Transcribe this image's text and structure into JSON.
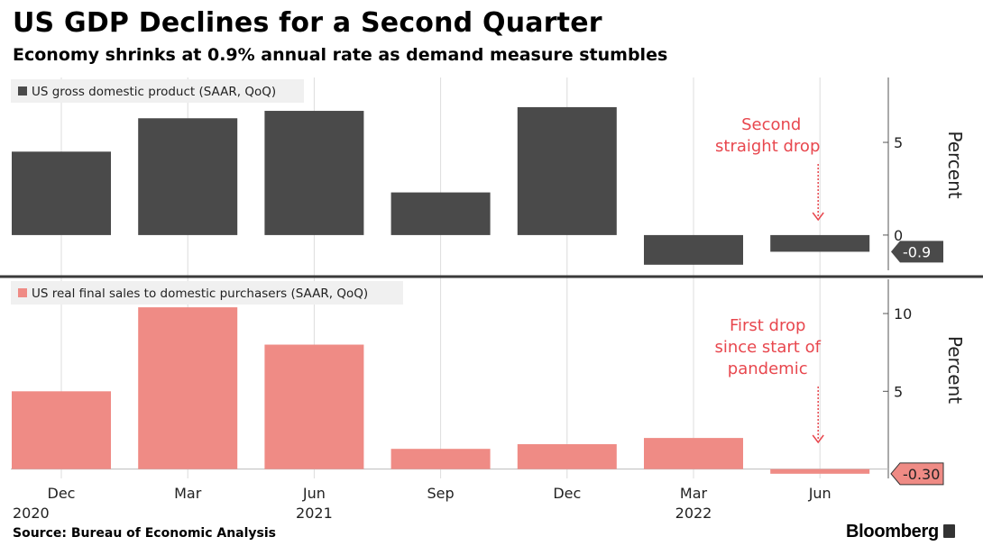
{
  "title": "US GDP Declines for a Second Quarter",
  "subtitle": "Economy shrinks at 0.9% annual rate as demand measure stumbles",
  "source": "Source: Bureau of Economic Analysis",
  "brand": "Bloomberg",
  "colors": {
    "gdp": "#4a4a4a",
    "sales": "#ef8b85",
    "annotation": "#e8474e",
    "grid": "#dcdcdc"
  },
  "chart_data": [
    {
      "type": "bar",
      "legend": "US gross domestic product (SAAR, QoQ)",
      "ylabel": "Percent",
      "categories": [
        "Dec 2020",
        "Mar 2021",
        "Jun 2021",
        "Sep 2021",
        "Dec 2021",
        "Mar 2022",
        "Jun 2022"
      ],
      "values": [
        4.5,
        6.3,
        6.7,
        2.3,
        6.9,
        -1.6,
        -0.9
      ],
      "ylim": [
        -1.9,
        8.5
      ],
      "yticks": [
        0,
        5
      ],
      "last_value_label": "-0.9",
      "annotation": [
        "Second",
        "straight drop"
      ]
    },
    {
      "type": "bar",
      "legend": "US real final sales to domestic purchasers (SAAR, QoQ)",
      "ylabel": "Percent",
      "categories": [
        "Dec 2020",
        "Mar 2021",
        "Jun 2021",
        "Sep 2021",
        "Dec 2021",
        "Mar 2022",
        "Jun 2022"
      ],
      "values": [
        5.0,
        10.4,
        8.0,
        1.3,
        1.6,
        2.0,
        -0.3
      ],
      "ylim": [
        -0.6,
        12.2
      ],
      "yticks": [
        5,
        10
      ],
      "last_value_label": "-0.30",
      "annotation": [
        "First drop",
        "since start of",
        "pandemic"
      ]
    }
  ],
  "x_axis": {
    "labels": [
      "Dec",
      "Mar",
      "Jun",
      "Sep",
      "Dec",
      "Mar",
      "Jun"
    ],
    "years": [
      {
        "text": "2020",
        "at": 0
      },
      {
        "text": "2021",
        "at": 2
      },
      {
        "text": "2022",
        "at": 5
      }
    ]
  }
}
